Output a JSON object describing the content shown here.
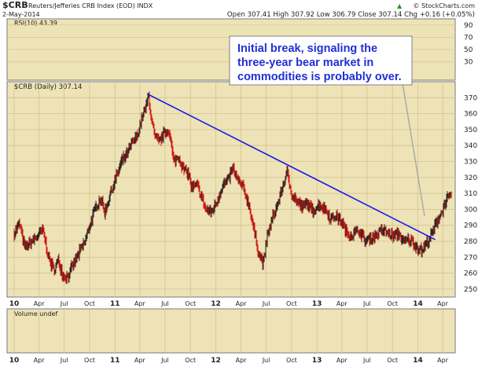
{
  "header": {
    "symbol": "$CRB",
    "name": "Reuters/Jefferies CRB Index (EOD) INDX",
    "date": "2-May-2014",
    "quote": "Open 307.41  High 307.92  Low 306.79  Close 307.14  Chg +0.16 (+0.05%)",
    "watermark": "© StockCharts.com",
    "watermark_icon": "up-arrow-icon"
  },
  "rsi_panel": {
    "label": "RSI(10) 43.39",
    "ticks": [
      30,
      50,
      70,
      90
    ],
    "range": [
      0,
      100
    ]
  },
  "volume_panel": {
    "label": "Volume undef"
  },
  "annotation": {
    "lines": [
      "Initial break, signaling the",
      "three-year bear market in",
      "commodities is probably over."
    ]
  },
  "colors": {
    "panel_bg": "#eee3b6",
    "up_bar": "#111111",
    "down_bar": "#cc0000",
    "trend_line": "#1a1ae6",
    "annotation_text": "#1f2fd6"
  },
  "chart_data": {
    "type": "line",
    "title": "$CRB (Daily) 307.14",
    "ylim": [
      245,
      380
    ],
    "y_ticks": [
      250,
      260,
      270,
      280,
      290,
      300,
      310,
      320,
      330,
      340,
      350,
      360,
      370
    ],
    "x_range": [
      "2010-01-01",
      "2014-05-02"
    ],
    "x_ticks": [
      {
        "date": "2010-01-01",
        "label": "10",
        "bold": true
      },
      {
        "date": "2010-04-01",
        "label": "Apr",
        "bold": false
      },
      {
        "date": "2010-07-01",
        "label": "Jul",
        "bold": false
      },
      {
        "date": "2010-10-01",
        "label": "Oct",
        "bold": false
      },
      {
        "date": "2011-01-01",
        "label": "11",
        "bold": true
      },
      {
        "date": "2011-04-01",
        "label": "Apr",
        "bold": false
      },
      {
        "date": "2011-07-01",
        "label": "Jul",
        "bold": false
      },
      {
        "date": "2011-10-01",
        "label": "Oct",
        "bold": false
      },
      {
        "date": "2012-01-01",
        "label": "12",
        "bold": true
      },
      {
        "date": "2012-04-01",
        "label": "Apr",
        "bold": false
      },
      {
        "date": "2012-07-01",
        "label": "Jul",
        "bold": false
      },
      {
        "date": "2012-10-01",
        "label": "Oct",
        "bold": false
      },
      {
        "date": "2013-01-01",
        "label": "13",
        "bold": true
      },
      {
        "date": "2013-04-01",
        "label": "Apr",
        "bold": false
      },
      {
        "date": "2013-07-01",
        "label": "Jul",
        "bold": false
      },
      {
        "date": "2013-10-01",
        "label": "Oct",
        "bold": false
      },
      {
        "date": "2014-01-01",
        "label": "14",
        "bold": true
      },
      {
        "date": "2014-04-01",
        "label": "Apr",
        "bold": false
      }
    ],
    "series": [
      {
        "x": [
          "2010-01-01",
          "2010-01-20",
          "2010-02-08",
          "2010-03-01",
          "2010-03-25",
          "2010-04-15",
          "2010-05-08",
          "2010-05-25",
          "2010-06-10",
          "2010-06-28",
          "2010-07-15",
          "2010-08-05",
          "2010-08-25",
          "2010-09-15",
          "2010-10-05",
          "2010-10-25",
          "2010-11-10",
          "2010-11-25",
          "2010-12-15",
          "2011-01-05",
          "2011-01-25",
          "2011-02-15",
          "2011-03-05",
          "2011-03-20",
          "2011-04-10",
          "2011-04-25",
          "2011-05-02",
          "2011-05-12",
          "2011-05-25",
          "2011-06-10",
          "2011-06-25",
          "2011-07-15",
          "2011-08-01",
          "2011-08-20",
          "2011-09-05",
          "2011-09-25",
          "2011-10-05",
          "2011-10-25",
          "2011-11-10",
          "2011-11-25",
          "2011-12-15",
          "2012-01-05",
          "2012-01-25",
          "2012-02-15",
          "2012-03-01",
          "2012-03-20",
          "2012-04-10",
          "2012-05-01",
          "2012-05-20",
          "2012-06-05",
          "2012-06-21",
          "2012-07-05",
          "2012-07-25",
          "2012-08-15",
          "2012-09-05",
          "2012-09-14",
          "2012-10-01",
          "2012-10-20",
          "2012-11-10",
          "2012-11-25",
          "2012-12-15",
          "2013-01-10",
          "2013-02-01",
          "2013-02-20",
          "2013-03-10",
          "2013-04-01",
          "2013-04-18",
          "2013-05-10",
          "2013-06-01",
          "2013-06-25",
          "2013-07-15",
          "2013-08-05",
          "2013-08-25",
          "2013-09-15",
          "2013-10-05",
          "2013-10-25",
          "2013-11-10",
          "2013-11-25",
          "2013-12-10",
          "2013-12-31",
          "2014-01-15",
          "2014-01-30",
          "2014-02-10",
          "2014-02-25",
          "2014-03-05",
          "2014-03-15",
          "2014-03-31",
          "2014-04-10",
          "2014-04-22",
          "2014-05-02"
        ],
        "y": [
          285,
          291,
          276,
          279,
          283,
          287,
          268,
          262,
          268,
          258,
          258,
          266,
          273,
          280,
          292,
          302,
          307,
          298,
          310,
          320,
          330,
          335,
          342,
          345,
          358,
          365,
          372,
          357,
          345,
          342,
          347,
          350,
          330,
          333,
          325,
          322,
          313,
          315,
          308,
          300,
          298,
          305,
          315,
          318,
          326,
          318,
          313,
          302,
          285,
          272,
          266,
          283,
          295,
          305,
          318,
          323,
          310,
          305,
          301,
          304,
          299,
          303,
          300,
          294,
          296,
          292,
          285,
          284,
          287,
          280,
          282,
          284,
          287,
          285,
          283,
          285,
          279,
          281,
          280,
          276,
          274,
          278,
          281,
          286,
          290,
          294,
          299,
          305,
          307,
          307
        ]
      }
    ],
    "trend_line": {
      "x": [
        "2011-05-02",
        "2014-03-05"
      ],
      "y": [
        372,
        281
      ]
    }
  }
}
